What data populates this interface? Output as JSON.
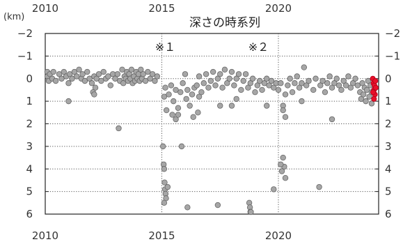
{
  "chart_data": {
    "type": "scatter",
    "title": "深さの時系列",
    "ylabel": "(km)",
    "xlim": [
      2010,
      2024.3
    ],
    "ylim": [
      -2,
      6
    ],
    "y_inverted": true,
    "x_ticks": [
      2010,
      2015,
      2020
    ],
    "y_ticks": [
      -2,
      -1,
      0,
      1,
      2,
      3,
      4,
      5,
      6
    ],
    "y_tick_labels": [
      "−2",
      "−1",
      "0",
      "1",
      "2",
      "3",
      "4",
      "5",
      "6"
    ],
    "grid": true,
    "annotations": [
      {
        "text": "※１",
        "x": 2015.0
      },
      {
        "text": "※２",
        "x": 2019.0
      }
    ],
    "marker_color": "#a6a6a6",
    "marker_edge_color": "#666666",
    "highlight_color": "#e8102a",
    "series": [
      {
        "name": "",
        "points": [
          [
            2010.05,
            -0.3
          ],
          [
            2010.1,
            -0.1
          ],
          [
            2010.15,
            0.1
          ],
          [
            2010.2,
            -0.2
          ],
          [
            2010.3,
            0.0
          ],
          [
            2010.35,
            -0.3
          ],
          [
            2010.45,
            0.1
          ],
          [
            2010.6,
            -0.2
          ],
          [
            2010.7,
            0.0
          ],
          [
            2010.8,
            -0.3
          ],
          [
            2010.9,
            -0.1
          ],
          [
            2011.0,
            0.2
          ],
          [
            2011.05,
            -0.2
          ],
          [
            2011.15,
            0.0
          ],
          [
            2011.25,
            -0.3
          ],
          [
            2011.35,
            -0.1
          ],
          [
            2011.45,
            -0.4
          ],
          [
            2011.55,
            0.0
          ],
          [
            2011.6,
            -0.2
          ],
          [
            2011.7,
            0.1
          ],
          [
            2011.8,
            -0.3
          ],
          [
            2011.9,
            0.0
          ],
          [
            2012.0,
            0.2
          ],
          [
            2012.1,
            -0.1
          ],
          [
            2012.15,
            0.4
          ],
          [
            2012.2,
            0.0
          ],
          [
            2012.3,
            -0.2
          ],
          [
            2012.4,
            0.1
          ],
          [
            2012.5,
            -0.3
          ],
          [
            2012.6,
            0.0
          ],
          [
            2012.7,
            -0.1
          ],
          [
            2012.8,
            0.3
          ],
          [
            2012.9,
            -0.2
          ],
          [
            2013.0,
            0.0
          ],
          [
            2013.1,
            -0.2
          ],
          [
            2013.2,
            0.1
          ],
          [
            2013.3,
            -0.4
          ],
          [
            2013.35,
            0.2
          ],
          [
            2013.4,
            -0.1
          ],
          [
            2013.45,
            0.0
          ],
          [
            2013.5,
            -0.3
          ],
          [
            2013.55,
            0.1
          ],
          [
            2013.6,
            -0.2
          ],
          [
            2013.65,
            0.0
          ],
          [
            2013.7,
            -0.4
          ],
          [
            2013.75,
            0.2
          ],
          [
            2013.8,
            -0.1
          ],
          [
            2013.85,
            0.1
          ],
          [
            2013.9,
            -0.3
          ],
          [
            2013.95,
            0.0
          ],
          [
            2014.0,
            -0.2
          ],
          [
            2014.05,
            0.1
          ],
          [
            2014.1,
            -0.4
          ],
          [
            2014.15,
            0.0
          ],
          [
            2014.2,
            -0.2
          ],
          [
            2014.3,
            0.1
          ],
          [
            2014.4,
            -0.3
          ],
          [
            2014.5,
            0.0
          ],
          [
            2014.6,
            -0.2
          ],
          [
            2014.7,
            0.1
          ],
          [
            2014.8,
            -0.1
          ],
          [
            2011.0,
            1.0
          ],
          [
            2012.05,
            0.6
          ],
          [
            2012.1,
            0.7
          ],
          [
            2013.15,
            2.2
          ],
          [
            2015.1,
            0.8
          ],
          [
            2015.15,
            0.4
          ],
          [
            2015.2,
            1.4
          ],
          [
            2015.3,
            0.7
          ],
          [
            2015.4,
            0.3
          ],
          [
            2015.45,
            1.6
          ],
          [
            2015.5,
            1.0
          ],
          [
            2015.6,
            0.5
          ],
          [
            2015.7,
            1.3
          ],
          [
            2015.8,
            0.6
          ],
          [
            2015.9,
            0.2
          ],
          [
            2016.0,
            -0.2
          ],
          [
            2016.05,
            0.9
          ],
          [
            2016.1,
            0.5
          ],
          [
            2016.2,
            1.2
          ],
          [
            2016.3,
            0.7
          ],
          [
            2016.4,
            0.4
          ],
          [
            2016.5,
            0.3
          ],
          [
            2016.6,
            -0.1
          ],
          [
            2016.7,
            0.6
          ],
          [
            2016.8,
            0.2
          ],
          [
            2016.9,
            -0.2
          ],
          [
            2017.0,
            0.4
          ],
          [
            2017.1,
            0.1
          ],
          [
            2017.2,
            -0.3
          ],
          [
            2017.3,
            0.3
          ],
          [
            2017.4,
            0.0
          ],
          [
            2017.5,
            -0.2
          ],
          [
            2017.6,
            0.4
          ],
          [
            2017.7,
            -0.4
          ],
          [
            2017.8,
            0.2
          ],
          [
            2017.9,
            0.0
          ],
          [
            2018.0,
            -0.3
          ],
          [
            2018.1,
            0.3
          ],
          [
            2018.2,
            0.0
          ],
          [
            2018.3,
            -0.2
          ],
          [
            2018.4,
            0.5
          ],
          [
            2018.5,
            0.1
          ],
          [
            2018.6,
            -0.2
          ],
          [
            2018.7,
            0.4
          ],
          [
            2018.8,
            0.2
          ],
          [
            2018.9,
            0.0
          ],
          [
            2019.0,
            0.6
          ],
          [
            2019.1,
            0.3
          ],
          [
            2019.2,
            0.1
          ],
          [
            2019.3,
            0.5
          ],
          [
            2019.4,
            0.2
          ],
          [
            2019.5,
            0.0
          ],
          [
            2019.6,
            0.3
          ],
          [
            2019.7,
            0.1
          ],
          [
            2019.8,
            0.4
          ],
          [
            2019.9,
            0.2
          ],
          [
            2015.6,
            1.8
          ],
          [
            2015.7,
            1.6
          ],
          [
            2015.85,
            3.0
          ],
          [
            2016.35,
            1.7
          ],
          [
            2016.55,
            1.5
          ],
          [
            2016.6,
            0.8
          ],
          [
            2017.5,
            1.2
          ],
          [
            2018.0,
            1.2
          ],
          [
            2018.2,
            0.9
          ],
          [
            2019.5,
            1.2
          ],
          [
            2017.4,
            5.6
          ],
          [
            2015.05,
            3.0
          ],
          [
            2015.08,
            3.8
          ],
          [
            2015.1,
            4.0
          ],
          [
            2015.12,
            4.6
          ],
          [
            2015.14,
            4.9
          ],
          [
            2015.16,
            5.1
          ],
          [
            2015.18,
            5.3
          ],
          [
            2015.1,
            5.5
          ],
          [
            2015.25,
            4.8
          ],
          [
            2016.1,
            5.7
          ],
          [
            2018.75,
            5.5
          ],
          [
            2018.78,
            5.7
          ],
          [
            2018.8,
            5.9
          ],
          [
            2018.82,
            6.0
          ],
          [
            2019.8,
            4.9
          ],
          [
            2020.0,
            0.5
          ],
          [
            2020.1,
            0.2
          ],
          [
            2020.2,
            1.2
          ],
          [
            2020.3,
            0.7
          ],
          [
            2020.4,
            0.3
          ],
          [
            2020.5,
            0.0
          ],
          [
            2020.6,
            0.6
          ],
          [
            2020.7,
            0.2
          ],
          [
            2020.8,
            -0.1
          ],
          [
            2020.9,
            0.4
          ],
          [
            2021.0,
            0.2
          ],
          [
            2021.1,
            -0.5
          ],
          [
            2021.2,
            0.3
          ],
          [
            2021.3,
            0.1
          ],
          [
            2021.5,
            0.5
          ],
          [
            2021.6,
            0.0
          ],
          [
            2021.8,
            0.3
          ],
          [
            2021.9,
            0.1
          ],
          [
            2022.0,
            0.6
          ],
          [
            2022.1,
            0.2
          ],
          [
            2022.2,
            -0.1
          ],
          [
            2022.3,
            0.4
          ],
          [
            2022.4,
            0.2
          ],
          [
            2022.5,
            0.0
          ],
          [
            2022.6,
            0.3
          ],
          [
            2022.7,
            0.5
          ],
          [
            2022.8,
            0.1
          ],
          [
            2022.9,
            0.3
          ],
          [
            2023.0,
            -0.1
          ],
          [
            2023.1,
            0.4
          ],
          [
            2023.2,
            0.2
          ],
          [
            2023.3,
            0.0
          ],
          [
            2023.4,
            0.3
          ],
          [
            2023.5,
            0.6
          ],
          [
            2023.55,
            0.9
          ],
          [
            2023.6,
            0.2
          ],
          [
            2023.65,
            0.7
          ],
          [
            2023.7,
            0.4
          ],
          [
            2023.75,
            1.0
          ],
          [
            2023.8,
            0.5
          ],
          [
            2023.85,
            0.1
          ],
          [
            2023.9,
            0.8
          ],
          [
            2023.95,
            0.3
          ],
          [
            2024.0,
            0.6
          ],
          [
            2024.0,
            1.1
          ],
          [
            2020.2,
            1.4
          ],
          [
            2020.3,
            1.7
          ],
          [
            2021.0,
            1.0
          ],
          [
            2022.3,
            1.8
          ],
          [
            2020.2,
            3.5
          ],
          [
            2020.25,
            3.9
          ],
          [
            2020.15,
            4.1
          ],
          [
            2020.3,
            4.4
          ],
          [
            2021.75,
            4.8
          ],
          [
            2020.1,
            3.8
          ]
        ]
      },
      {
        "name": "",
        "highlight": true,
        "points": [
          [
            2024.05,
            0.0
          ],
          [
            2024.08,
            0.2
          ],
          [
            2024.1,
            0.5
          ],
          [
            2024.12,
            0.3
          ],
          [
            2024.14,
            0.7
          ],
          [
            2024.16,
            0.1
          ],
          [
            2024.18,
            0.4
          ],
          [
            2024.1,
            0.9
          ],
          [
            2024.06,
            0.6
          ]
        ]
      }
    ]
  }
}
